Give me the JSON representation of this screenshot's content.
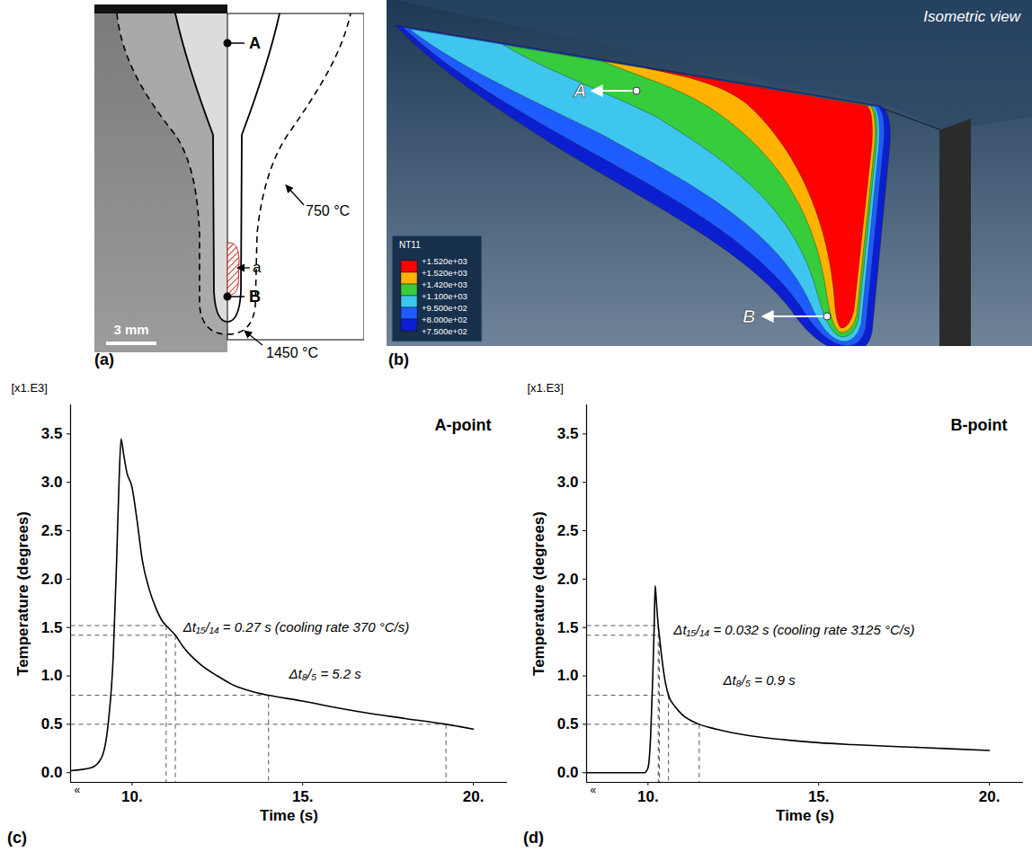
{
  "panels": [
    {
      "letter": "(a)",
      "labels": {
        "point_A": "A",
        "point_B": "B",
        "region": "a",
        "isotherm_outer": "750 °C",
        "isotherm_fusion": "1450 °C",
        "scale_bar": "3 mm"
      }
    },
    {
      "letter": "(b)",
      "view_label": "Isometric view",
      "points": [
        "A",
        "B"
      ],
      "contour_legend": {
        "title": "NT11",
        "levels": [
          {
            "value": 1520,
            "label": "+1.520e+03"
          },
          {
            "value": 1520,
            "label": "+1.520e+03"
          },
          {
            "value": 1420,
            "label": "+1.420e+03"
          },
          {
            "value": 1100,
            "label": "+1.100e+03"
          },
          {
            "value": 950,
            "label": "+9.500e+02"
          },
          {
            "value": 800,
            "label": "+8.000e+02"
          },
          {
            "value": 750,
            "label": "+7.500e+02"
          }
        ],
        "colors": [
          "#ff0000",
          "#ffb300",
          "#36cc3c",
          "#3ec6ee",
          "#1f5cff",
          "#0c1fd0"
        ]
      }
    }
  ],
  "chart_data": [
    {
      "type": "line",
      "panel_label": "(c)",
      "title": "A-point",
      "x_label": "Time (s)",
      "y_label": "Temperature (degrees)",
      "y_multiplier": "[x1.E3]",
      "x_break_mark": "«",
      "xlim": [
        8.2,
        21
      ],
      "xticks": [
        {
          "value": 10,
          "label": "10."
        },
        {
          "value": 15,
          "label": "15."
        },
        {
          "value": 20,
          "label": "20."
        }
      ],
      "ylim": [
        -0.1,
        3.8
      ],
      "yticks": [
        {
          "value": 0,
          "label": "0.0"
        },
        0.5,
        {
          "value": 1,
          "label": "1.0"
        },
        1.5,
        {
          "value": 2,
          "label": "2.0"
        },
        2.5,
        {
          "value": 3,
          "label": "3.0"
        },
        3.5
      ],
      "color": "#000000",
      "x": [
        8.2,
        8.8,
        9.1,
        9.3,
        9.45,
        9.55,
        9.62,
        9.68,
        9.75,
        9.85,
        10.0,
        10.15,
        10.3,
        10.5,
        10.7,
        10.9,
        11.0,
        11.27,
        11.5,
        12.0,
        12.5,
        13.0,
        13.5,
        14.0,
        15.0,
        16.0,
        17.0,
        18.0,
        19.2,
        20.0
      ],
      "values": [
        0.02,
        0.05,
        0.15,
        0.5,
        1.2,
        2.2,
        3.0,
        3.45,
        3.3,
        3.1,
        2.95,
        2.6,
        2.2,
        1.9,
        1.7,
        1.56,
        1.52,
        1.42,
        1.3,
        1.12,
        1.0,
        0.9,
        0.84,
        0.8,
        0.74,
        0.67,
        0.61,
        0.56,
        0.5,
        0.45
      ],
      "guides": [
        {
          "x": 11.0,
          "y": 1.52
        },
        {
          "x": 11.27,
          "y": 1.42
        },
        {
          "x": 14.0,
          "y": 0.8
        },
        {
          "x": 19.2,
          "y": 0.5
        }
      ],
      "annotations": [
        {
          "text": "Δt₁₅/₁₄ = 0.27 s (cooling rate 370 °C/s)",
          "x": 11.5,
          "y": 1.5
        },
        {
          "text": "Δt₈/₅ = 5.2 s",
          "x": 14.6,
          "y": 1.02
        }
      ]
    },
    {
      "type": "line",
      "panel_label": "(d)",
      "title": "B-point",
      "x_label": "Time (s)",
      "y_label": "Temperature (degrees)",
      "y_multiplier": "[x1.E3]",
      "x_break_mark": "«",
      "xlim": [
        8.2,
        21
      ],
      "xticks": [
        {
          "value": 10,
          "label": "10."
        },
        {
          "value": 15,
          "label": "15."
        },
        {
          "value": 20,
          "label": "20."
        }
      ],
      "ylim": [
        -0.1,
        3.8
      ],
      "yticks": [
        {
          "value": 0,
          "label": "0.0"
        },
        0.5,
        {
          "value": 1,
          "label": "1.0"
        },
        1.5,
        {
          "value": 2,
          "label": "2.0"
        },
        2.5,
        {
          "value": 3,
          "label": "3.0"
        },
        3.5
      ],
      "color": "#000000",
      "x": [
        8.2,
        9.9,
        10.0,
        10.08,
        10.14,
        10.18,
        10.21,
        10.24,
        10.28,
        10.3,
        10.332,
        10.4,
        10.5,
        10.6,
        10.8,
        11.0,
        11.5,
        12.0,
        13.0,
        14.0,
        15.0,
        16.0,
        18.0,
        20.0
      ],
      "values": [
        0,
        0,
        0.05,
        0.4,
        1.0,
        1.5,
        1.93,
        1.8,
        1.6,
        1.52,
        1.42,
        1.2,
        0.95,
        0.8,
        0.68,
        0.6,
        0.5,
        0.45,
        0.38,
        0.34,
        0.31,
        0.29,
        0.26,
        0.23
      ],
      "guides": [
        {
          "x": 10.3,
          "y": 1.52
        },
        {
          "x": 10.332,
          "y": 1.42
        },
        {
          "x": 10.6,
          "y": 0.8
        },
        {
          "x": 11.5,
          "y": 0.5
        }
      ],
      "annotations": [
        {
          "text": "Δt₁₅/₁₄ = 0.032 s (cooling rate 3125 °C/s)",
          "x": 10.75,
          "y": 1.47
        },
        {
          "text": "Δt₈/₅ = 0.9 s",
          "x": 12.2,
          "y": 0.95
        }
      ]
    }
  ]
}
